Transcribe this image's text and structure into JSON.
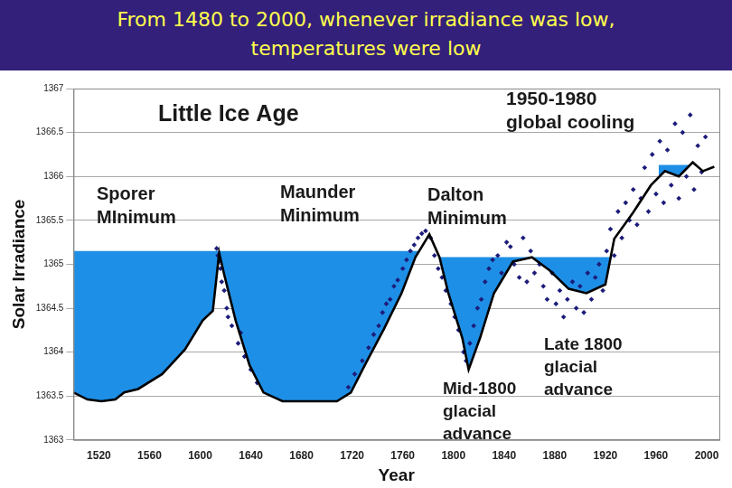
{
  "chart_data": {
    "type": "line",
    "title": "From 1480 to 2000, whenever irradiance was low, temperatures were low",
    "x_label": "Year",
    "y_label": "Solar Irradiance",
    "xlim": [
      1500,
      2010
    ],
    "xticks": [
      1520,
      1560,
      1600,
      1640,
      1680,
      1720,
      1760,
      1800,
      1840,
      1880,
      1920,
      1960,
      2000
    ],
    "ylim": [
      1363,
      1367
    ],
    "yticks": [
      1363,
      1363.5,
      1364,
      1364.5,
      1365,
      1365.5,
      1366,
      1366.5,
      1367
    ],
    "grid": true,
    "series": [
      {
        "type": "line",
        "color": "#000000",
        "line_style": "solid",
        "x": [
          1500,
          1511,
          1522,
          1533,
          1540,
          1551,
          1570,
          1588,
          1602,
          1610,
          1615,
          1619,
          1628,
          1639,
          1650,
          1665,
          1708,
          1719,
          1730,
          1745,
          1759,
          1770,
          1781,
          1789,
          1796,
          1807,
          1812,
          1821,
          1832,
          1847,
          1862,
          1876,
          1891,
          1905,
          1920,
          1927,
          1942,
          1956,
          1967,
          1978,
          1989,
          1997,
          2006
        ],
        "values": [
          1363.54,
          1363.46,
          1363.44,
          1363.46,
          1363.54,
          1363.58,
          1363.75,
          1364.03,
          1364.36,
          1364.47,
          1365.13,
          1364.88,
          1364.36,
          1363.85,
          1363.54,
          1363.44,
          1363.44,
          1363.54,
          1363.85,
          1364.26,
          1364.67,
          1365.08,
          1365.34,
          1365.08,
          1364.67,
          1364.16,
          1363.8,
          1364.16,
          1364.67,
          1365.03,
          1365.08,
          1364.93,
          1364.72,
          1364.67,
          1364.77,
          1365.29,
          1365.59,
          1365.9,
          1366.06,
          1366.0,
          1366.16,
          1366.06,
          1366.11
        ]
      },
      {
        "type": "scatter",
        "color": "#1c1c7a",
        "marker": "diamond",
        "x": [
          1613,
          1614,
          1615,
          1616,
          1617,
          1619,
          1621,
          1622,
          1625,
          1630,
          1632,
          1635,
          1640,
          1645,
          1717,
          1722,
          1728,
          1733,
          1737,
          1741,
          1744,
          1747,
          1750,
          1753,
          1756,
          1760,
          1763,
          1766,
          1769,
          1772,
          1775,
          1778,
          1782,
          1785,
          1788,
          1791,
          1794,
          1798,
          1801,
          1804,
          1808,
          1810,
          1813,
          1816,
          1819,
          1822,
          1825,
          1828,
          1831,
          1835,
          1838,
          1842,
          1845,
          1848,
          1852,
          1855,
          1858,
          1861,
          1864,
          1868,
          1871,
          1874,
          1878,
          1881,
          1884,
          1887,
          1890,
          1894,
          1897,
          1900,
          1903,
          1906,
          1909,
          1912,
          1915,
          1918,
          1921,
          1924,
          1927,
          1930,
          1933,
          1936,
          1939,
          1942,
          1945,
          1948,
          1951,
          1954,
          1957,
          1960,
          1963,
          1966,
          1969,
          1972,
          1975,
          1978,
          1981,
          1984,
          1987,
          1990,
          1993,
          1996,
          1999
        ],
        "values": [
          1365.18,
          1365.1,
          1365.03,
          1364.95,
          1364.8,
          1364.7,
          1364.5,
          1364.4,
          1364.3,
          1364.1,
          1364.22,
          1363.95,
          1363.8,
          1363.65,
          1363.6,
          1363.75,
          1363.9,
          1364.05,
          1364.2,
          1364.3,
          1364.45,
          1364.55,
          1364.6,
          1364.75,
          1364.82,
          1364.95,
          1365.05,
          1365.15,
          1365.22,
          1365.3,
          1365.35,
          1365.38,
          1365.3,
          1365.1,
          1364.95,
          1364.85,
          1364.7,
          1364.55,
          1364.4,
          1364.25,
          1364.0,
          1363.9,
          1364.1,
          1364.3,
          1364.5,
          1364.6,
          1364.8,
          1364.95,
          1365.05,
          1365.1,
          1364.9,
          1365.25,
          1365.2,
          1365.0,
          1364.85,
          1365.3,
          1364.8,
          1365.15,
          1364.9,
          1365.0,
          1364.75,
          1364.6,
          1364.9,
          1364.55,
          1364.7,
          1364.4,
          1364.6,
          1364.8,
          1364.5,
          1364.75,
          1364.45,
          1364.9,
          1364.6,
          1364.85,
          1365.0,
          1364.7,
          1365.15,
          1365.4,
          1365.1,
          1365.6,
          1365.3,
          1365.7,
          1365.5,
          1365.85,
          1365.45,
          1365.75,
          1366.1,
          1365.6,
          1366.25,
          1365.8,
          1366.4,
          1365.7,
          1366.3,
          1365.9,
          1366.6,
          1365.75,
          1366.5,
          1366.0,
          1366.7,
          1365.85,
          1366.35,
          1366.05,
          1366.45
        ]
      }
    ],
    "shaded_areas": [
      {
        "color": "#1e8fe6",
        "x": [
          1500,
          1773
        ],
        "level": 1365.15
      },
      {
        "color": "#1e8fe6",
        "x": [
          1789,
          1925
        ],
        "level": 1365.08
      },
      {
        "color": "#1e8fe6",
        "x": [
          1962,
          1990
        ],
        "level": 1366.13
      }
    ],
    "annotations": [
      "Little Ice Age",
      "1950-1980\nglobal cooling",
      "Sporer\nMInimum",
      "Maunder\nMinimum",
      "Dalton\nMinimum",
      "Mid-1800\nglacial\nadvance",
      "Late 1800\nglacial\nadvance"
    ]
  }
}
